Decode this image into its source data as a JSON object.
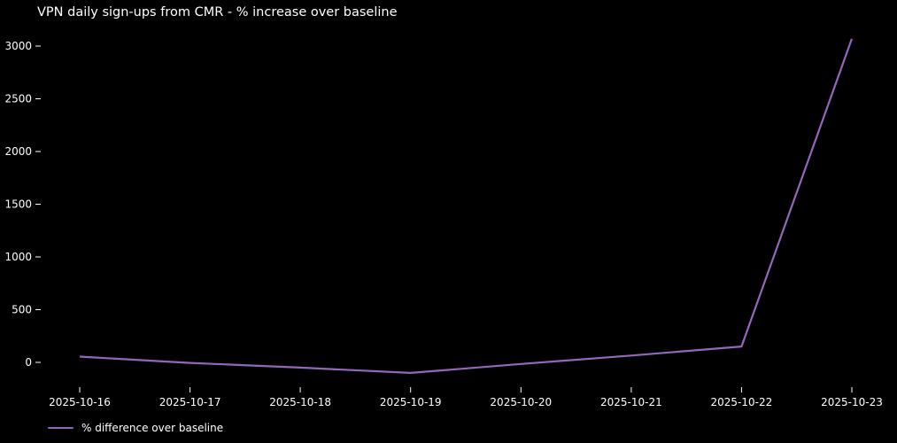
{
  "chart_data": {
    "type": "line",
    "title": "VPN daily sign-ups from CMR - % increase over baseline",
    "categories": [
      "2025-10-16",
      "2025-10-17",
      "2025-10-18",
      "2025-10-19",
      "2025-10-20",
      "2025-10-21",
      "2025-10-22",
      "2025-10-23"
    ],
    "series": [
      {
        "name": "% difference over baseline",
        "color": "#9467bd",
        "values": [
          55,
          -5,
          -50,
          -100,
          -15,
          65,
          150,
          3070
        ]
      }
    ],
    "yticks": [
      0,
      500,
      1000,
      1500,
      2000,
      2500,
      3000
    ],
    "ylim": [
      -260,
      3230
    ],
    "xlabel": "",
    "ylabel": "",
    "grid": false,
    "legend_position": "lower-left-outside",
    "background": "#000000",
    "text_color": "#ffffff"
  }
}
